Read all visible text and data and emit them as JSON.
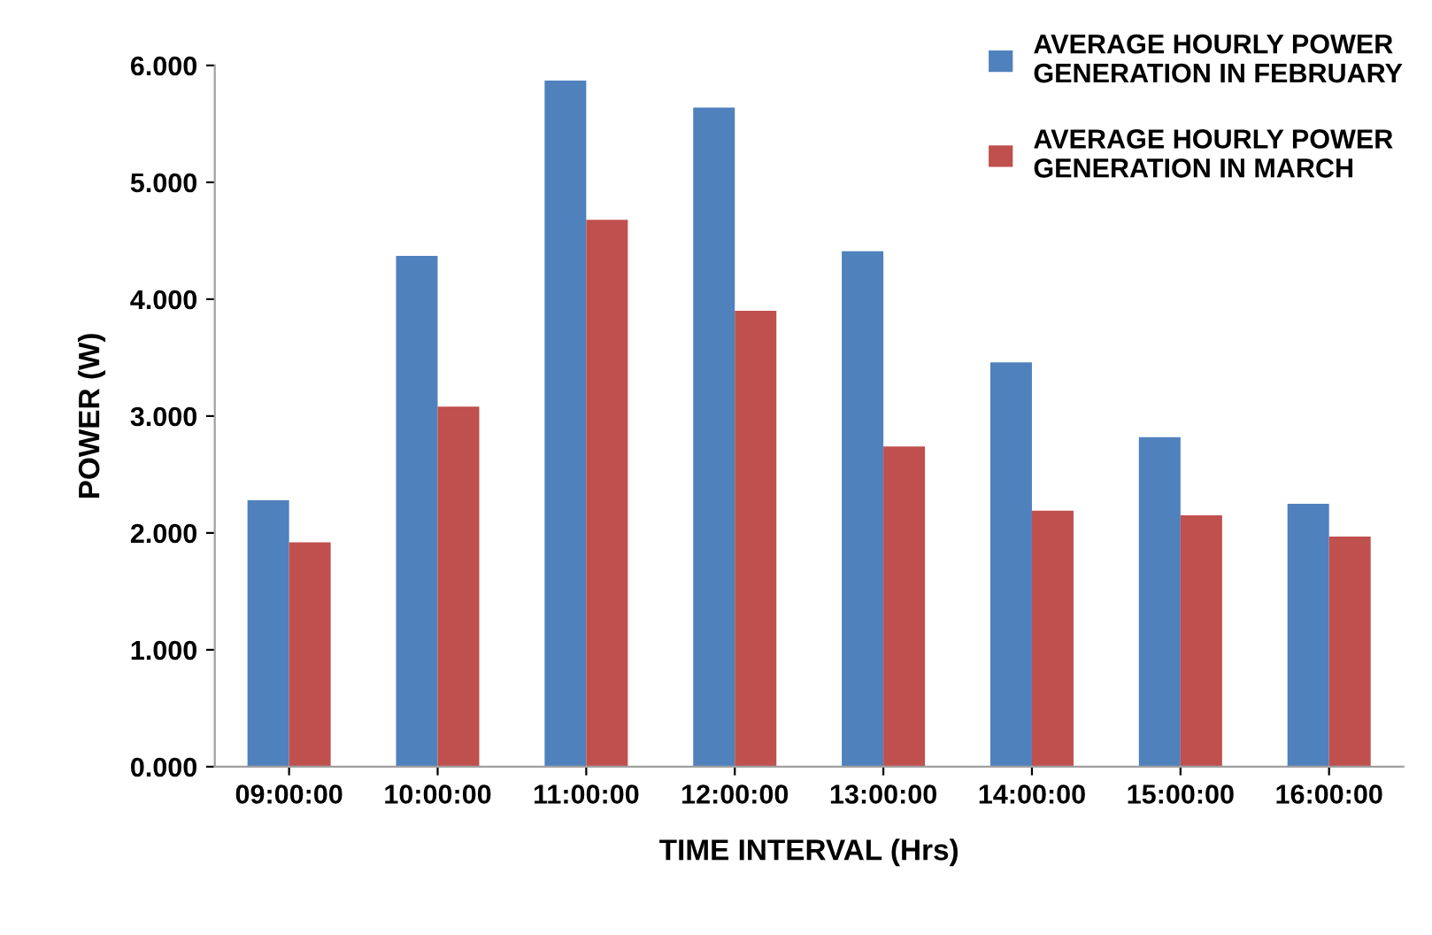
{
  "chart_data": {
    "type": "bar",
    "xlabel": "TIME INTERVAL (Hrs)",
    "ylabel": "POWER (W)",
    "categories": [
      "09:00:00",
      "10:00:00",
      "11:00:00",
      "12:00:00",
      "13:00:00",
      "14:00:00",
      "15:00:00",
      "16:00:00"
    ],
    "series": [
      {
        "name": "AVERAGE HOURLY POWER\nGENERATION IN FEBRUARY",
        "color": "#4f81bd",
        "values": [
          2.28,
          4.37,
          5.87,
          5.64,
          4.41,
          3.46,
          2.82,
          2.25
        ]
      },
      {
        "name": "AVERAGE HOURLY POWER\nGENERATION IN MARCH",
        "color": "#c0504d",
        "values": [
          1.92,
          3.08,
          4.68,
          3.9,
          2.74,
          2.19,
          2.15,
          1.97
        ]
      }
    ],
    "ylim": [
      0,
      6
    ],
    "yticks": [
      {
        "value": 0,
        "label": "0.000"
      },
      {
        "value": 1,
        "label": "1.000"
      },
      {
        "value": 2,
        "label": "2.000"
      },
      {
        "value": 3,
        "label": "3.000"
      },
      {
        "value": 4,
        "label": "4.000"
      },
      {
        "value": 5,
        "label": "5.000"
      },
      {
        "value": 6,
        "label": "6.000"
      }
    ],
    "grid": false,
    "legend": "top right"
  }
}
